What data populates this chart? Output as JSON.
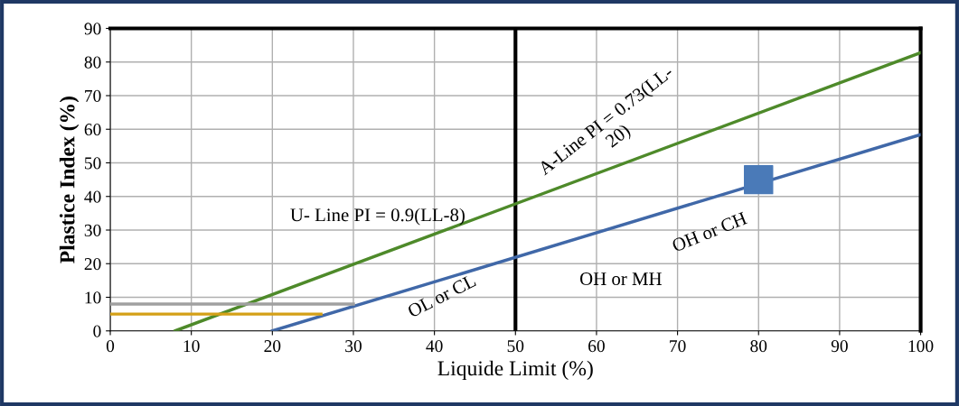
{
  "chart_data": {
    "type": "line",
    "xlabel": "Liquide Limit (%)",
    "ylabel": "Plastice Index (%)",
    "xlim": [
      0,
      100
    ],
    "ylim": [
      0,
      90
    ],
    "xticks": [
      0,
      10,
      20,
      30,
      40,
      50,
      60,
      70,
      80,
      90,
      100
    ],
    "yticks": [
      0,
      10,
      20,
      30,
      40,
      50,
      60,
      70,
      80,
      90
    ],
    "grid": true,
    "marker": "none",
    "line_style": "solid",
    "series": [
      {
        "color": "#4e8a2a",
        "x": [
          8,
          100
        ],
        "values": [
          0,
          82.8
        ]
      },
      {
        "color": "#4068a8",
        "x": [
          20,
          100
        ],
        "values": [
          0,
          58.4
        ]
      },
      {
        "color": "#a0a0a0",
        "x": [
          0,
          30
        ],
        "values": [
          8,
          8
        ]
      },
      {
        "color": "#d4a017",
        "x": [
          0,
          26
        ],
        "values": [
          5,
          5
        ]
      },
      {
        "type": "scatter",
        "color": "#4a7ab8",
        "marker": "square",
        "x": [
          80
        ],
        "values": [
          45
        ]
      }
    ],
    "ref_lines": [
      {
        "axis": "x",
        "value": 50,
        "color": "#000000"
      }
    ],
    "annotations": [
      "U- Line PI = 0.9(LL-8)",
      "A-Line PI = 0.73(LL-\n20)",
      "OL or CL",
      "OH or MH",
      "OH or CH"
    ]
  }
}
